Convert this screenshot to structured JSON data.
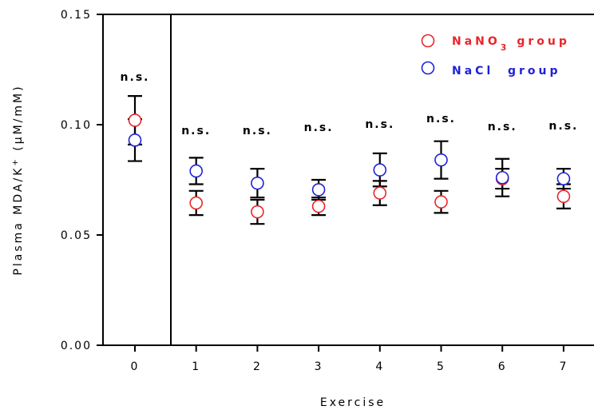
{
  "chart_data": {
    "type": "scatter",
    "xlabel": "Exercise",
    "ylabel_main": "Plasma MDA/K",
    "ylabel_sup": "+",
    "ylabel_unit": " (μM/mM)",
    "ylim": [
      0,
      0.15
    ],
    "y_ticks": [
      "0.00",
      "0.05",
      "0.10",
      "0.15"
    ],
    "categories": [
      "0",
      "1",
      "2",
      "3",
      "4",
      "5",
      "6",
      "7"
    ],
    "annotations": [
      "n.s.",
      "n.s.",
      "n.s.",
      "n.s.",
      "n.s.",
      "n.s.",
      "n.s.",
      "n.s."
    ],
    "legend_position": "top-right",
    "series": [
      {
        "name_main": "NaNO",
        "name_sub": "3",
        "name_rest": " group",
        "color": "#e8262b",
        "values": [
          0.102,
          0.0645,
          0.0605,
          0.063,
          0.069,
          0.065,
          0.0755,
          0.0675
        ],
        "errors": [
          0.011,
          0.0055,
          0.0055,
          0.004,
          0.0055,
          0.005,
          0.0045,
          0.0055
        ]
      },
      {
        "name": "NaCl  group",
        "color": "#1f22d6",
        "values": [
          0.093,
          0.079,
          0.0735,
          0.0705,
          0.0795,
          0.084,
          0.076,
          0.0755
        ],
        "errors": [
          0.0095,
          0.006,
          0.0065,
          0.0045,
          0.0075,
          0.0085,
          0.0085,
          0.0045
        ]
      }
    ]
  }
}
